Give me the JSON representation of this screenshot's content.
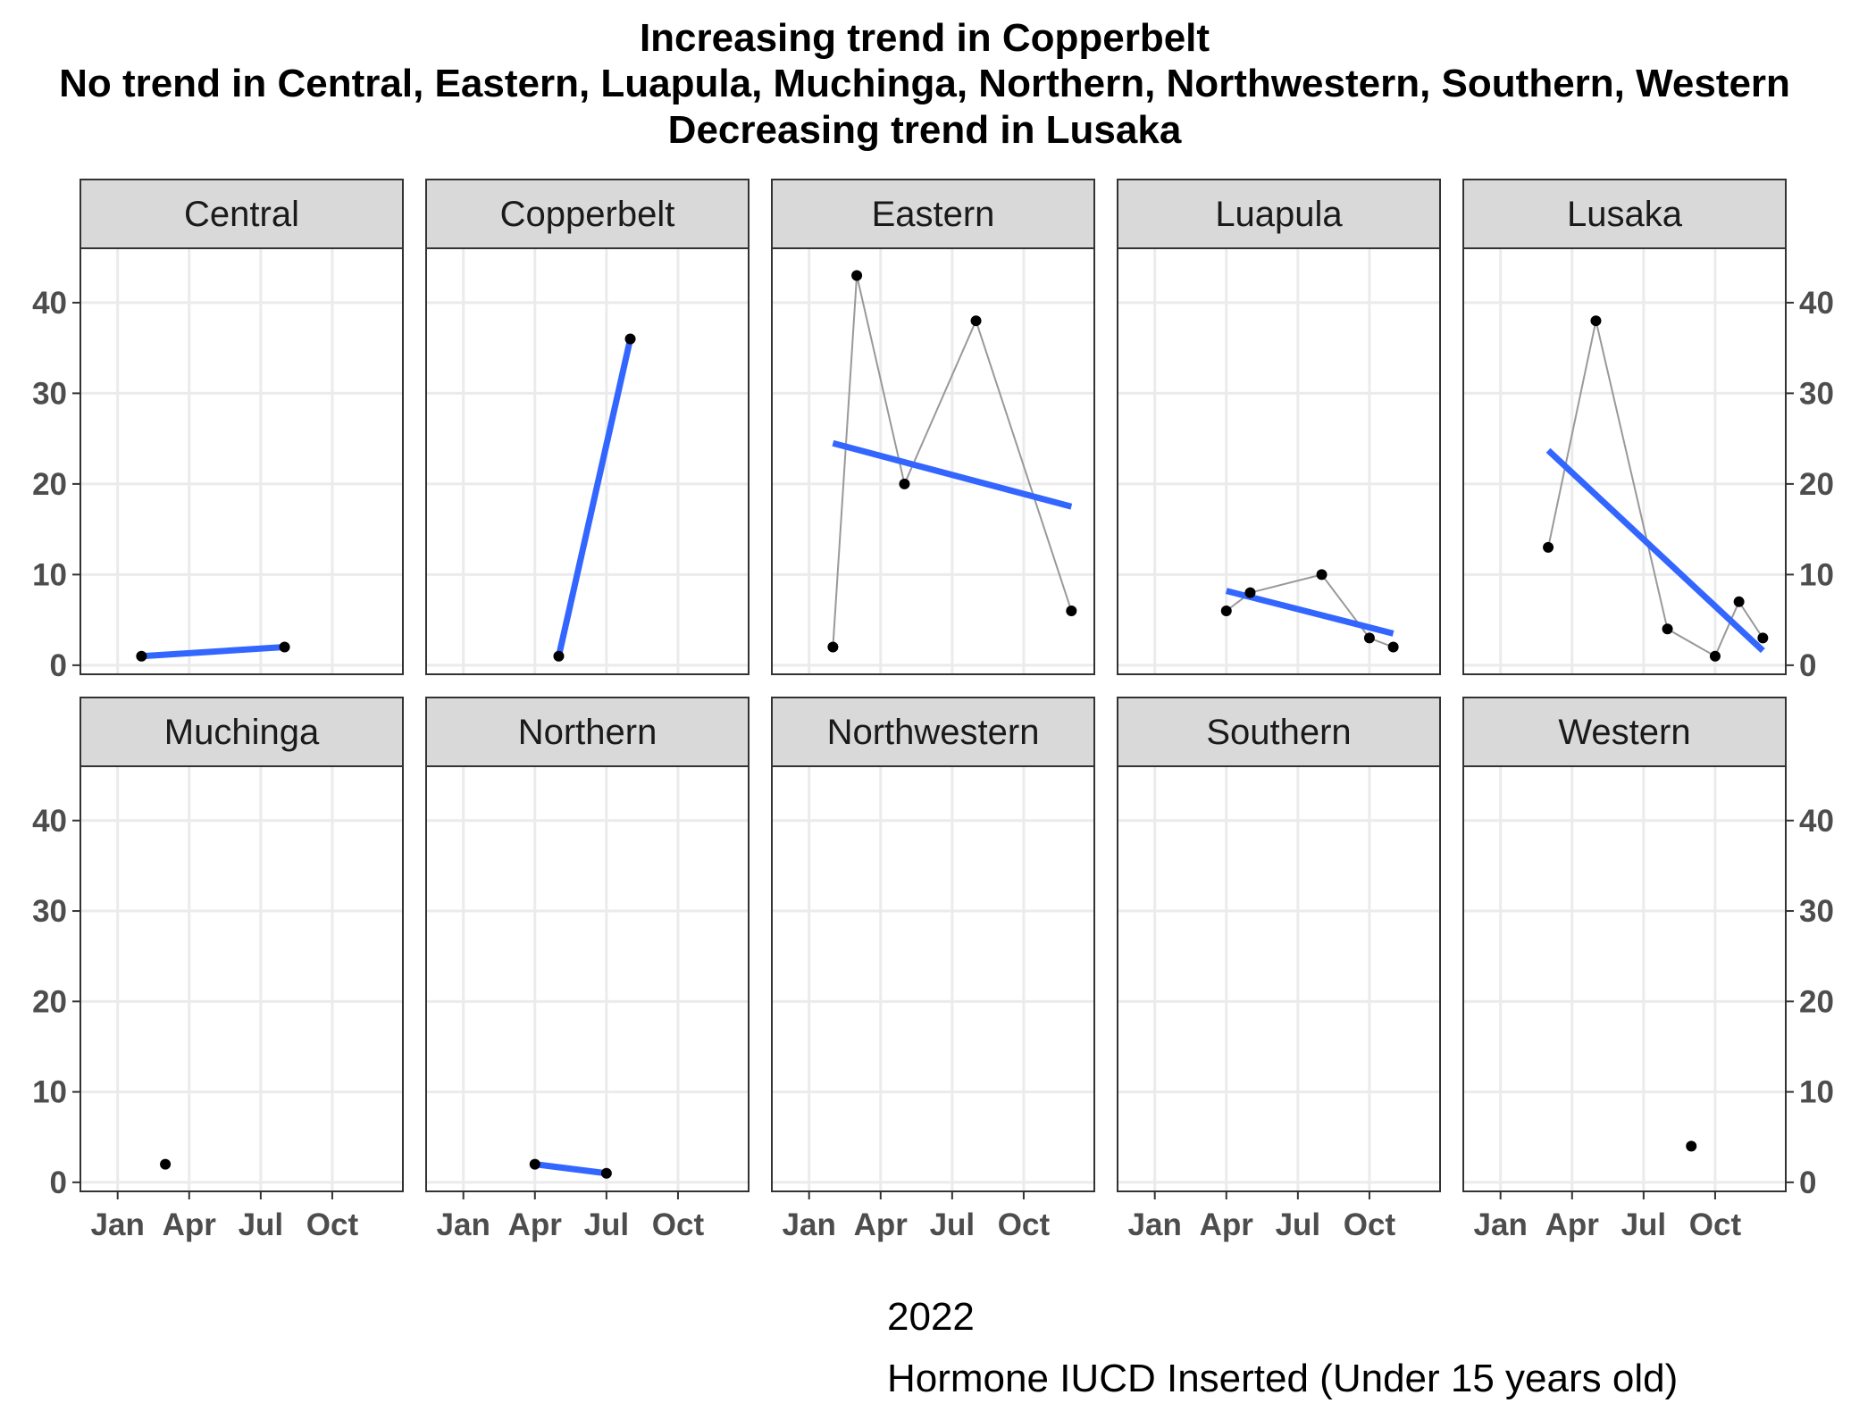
{
  "chart_data": {
    "type": "line",
    "title": [
      "Increasing trend in Copperbelt",
      "No trend in Central, Eastern, Luapula, Muchinga, Northern, Northwestern, Southern, Western",
      "Decreasing trend in Lusaka"
    ],
    "xlabel": "2022",
    "caption": "Hormone IUCD Inserted (Under 15 years old)",
    "x_tick_labels": [
      "Jan",
      "Apr",
      "Jul",
      "Oct"
    ],
    "y_tick_labels": [
      "0",
      "10",
      "20",
      "30",
      "40"
    ],
    "ylim": [
      -1,
      46
    ],
    "x_range_months": [
      "2021-12",
      "2022-12"
    ],
    "grid": true,
    "colors": {
      "trend": "#3366ff",
      "connector": "#999999",
      "points": "#000000",
      "strip": "#d9d9d9"
    },
    "panels": [
      {
        "name": "Central",
        "points": [
          [
            "2022-02-01",
            1
          ],
          [
            "2022-08-01",
            2
          ]
        ],
        "trend": [
          [
            "2022-02-01",
            1
          ],
          [
            "2022-08-01",
            2
          ]
        ]
      },
      {
        "name": "Copperbelt",
        "points": [
          [
            "2022-05-01",
            1
          ],
          [
            "2022-08-01",
            36
          ]
        ],
        "trend": [
          [
            "2022-05-01",
            1
          ],
          [
            "2022-08-01",
            36
          ]
        ]
      },
      {
        "name": "Eastern",
        "points": [
          [
            "2022-02-01",
            2
          ],
          [
            "2022-03-01",
            43
          ],
          [
            "2022-05-01",
            20
          ],
          [
            "2022-08-01",
            38
          ],
          [
            "2022-12-01",
            6
          ]
        ],
        "trend": [
          [
            "2022-02-01",
            24.5
          ],
          [
            "2022-12-01",
            17.5
          ]
        ]
      },
      {
        "name": "Luapula",
        "points": [
          [
            "2022-04-01",
            6
          ],
          [
            "2022-05-01",
            8
          ],
          [
            "2022-08-01",
            10
          ],
          [
            "2022-10-01",
            3
          ],
          [
            "2022-11-01",
            2
          ]
        ],
        "trend": [
          [
            "2022-04-01",
            8.2
          ],
          [
            "2022-11-01",
            3.5
          ]
        ]
      },
      {
        "name": "Lusaka",
        "points": [
          [
            "2022-03-01",
            13
          ],
          [
            "2022-05-01",
            38
          ],
          [
            "2022-08-01",
            4
          ],
          [
            "2022-10-01",
            1
          ],
          [
            "2022-11-01",
            7
          ],
          [
            "2022-12-01",
            3
          ]
        ],
        "trend": [
          [
            "2022-03-01",
            23.7
          ],
          [
            "2022-12-01",
            1.6
          ]
        ]
      },
      {
        "name": "Muchinga",
        "points": [
          [
            "2022-03-01",
            2
          ]
        ],
        "trend": []
      },
      {
        "name": "Northern",
        "points": [
          [
            "2022-04-01",
            2
          ],
          [
            "2022-07-01",
            1
          ]
        ],
        "trend": [
          [
            "2022-04-01",
            2
          ],
          [
            "2022-07-01",
            1
          ]
        ]
      },
      {
        "name": "Northwestern",
        "points": [],
        "trend": []
      },
      {
        "name": "Southern",
        "points": [],
        "trend": []
      },
      {
        "name": "Western",
        "points": [
          [
            "2022-09-01",
            4
          ]
        ],
        "trend": []
      }
    ]
  }
}
